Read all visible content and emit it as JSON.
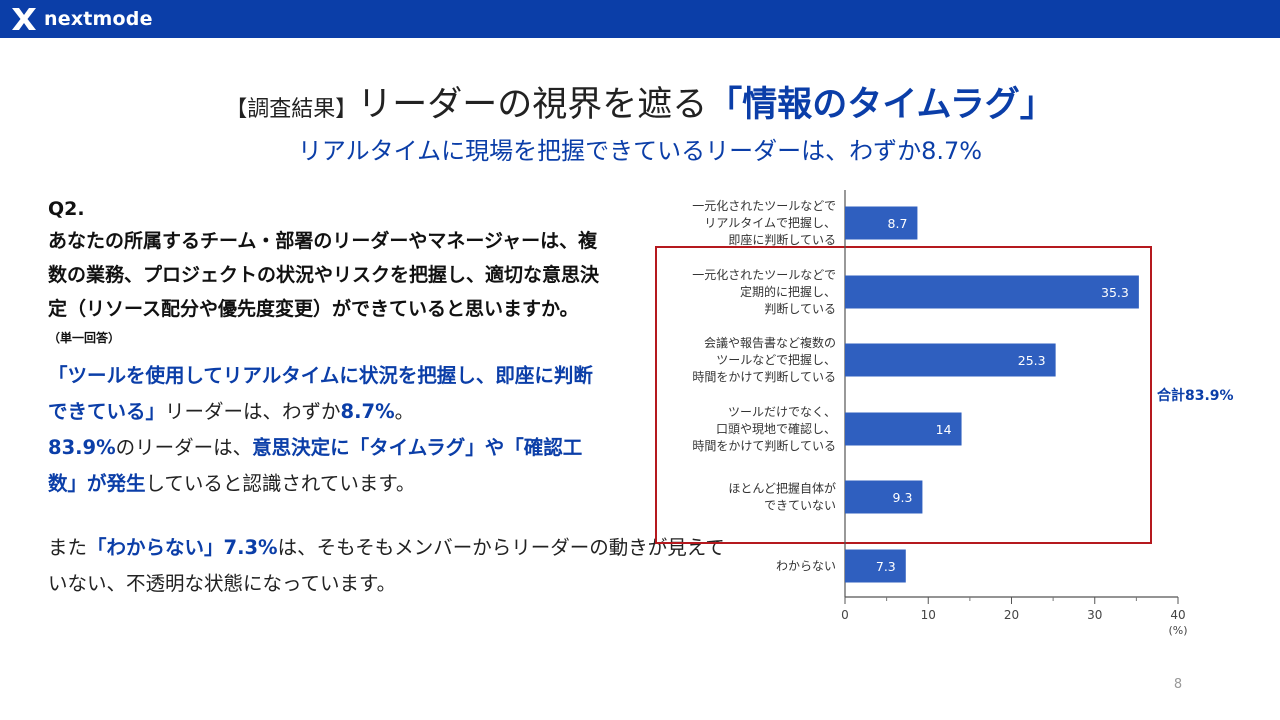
{
  "brand": {
    "name": "nextmode"
  },
  "colors": {
    "brand": "#0b3ea8",
    "bar": "#2f5fbf",
    "highlight_box": "#b5191e"
  },
  "title": {
    "prefix": "【調査結果】",
    "main": "リーダーの視界を遮る",
    "accent": "「情報のタイムラグ」"
  },
  "subtitle": "リアルタイムに現場を把握できているリーダーは、わずか8.7%",
  "question": {
    "number": "Q2.",
    "text": "あなたの所属するチーム・部署のリーダーやマネージャーは、複数の業務、プロジェクトの状況やリスクを把握し、適切な意思決定（リソース配分や優先度変更）ができていると思いますか。",
    "note": "（単一回答）"
  },
  "finding": {
    "part1": "「ツールを使用してリアルタイムに状況を把握し、即座に判断できている」",
    "part2": "リーダーは、わずか",
    "part3": "8.7%",
    "part4": "。",
    "part5": "83.9%",
    "part6": "のリーダーは、",
    "part7": "意思決定に「タイムラグ」や「確認工数」が発生",
    "part8": "していると認識されています。"
  },
  "extra": {
    "part1": "また",
    "part2": "「わからない」7.3%",
    "part3": "は、そもそもメンバーからリーダーの動きが見えていない、不透明な状態になっています。"
  },
  "chart_data": {
    "type": "bar",
    "orientation": "horizontal",
    "categories": [
      [
        "一元化されたツールなどで",
        "リアルタイムで把握し、",
        "即座に判断している"
      ],
      [
        "一元化されたツールなどで",
        "定期的に把握し、",
        "判断している"
      ],
      [
        "会議や報告書など複数の",
        "ツールなどで把握し、",
        "時間をかけて判断している"
      ],
      [
        "ツールだけでなく、",
        "口頭や現地で確認し、",
        "時間をかけて判断している"
      ],
      [
        "ほとんど把握自体が",
        "できていない"
      ],
      [
        "わからない"
      ]
    ],
    "values": [
      8.7,
      35.3,
      25.3,
      14,
      9.3,
      7.3
    ],
    "value_labels": [
      "8.7",
      "35.3",
      "25.3",
      "14",
      "9.3",
      "7.3"
    ],
    "xlim": [
      0,
      40
    ],
    "xticks": [
      0,
      10,
      20,
      30,
      40
    ],
    "minor_ticks": [
      5,
      15,
      25,
      35
    ],
    "unit_label": "(%)",
    "highlight_range": [
      1,
      4
    ],
    "highlight_label": "合計83.9%"
  },
  "page_number": "8"
}
